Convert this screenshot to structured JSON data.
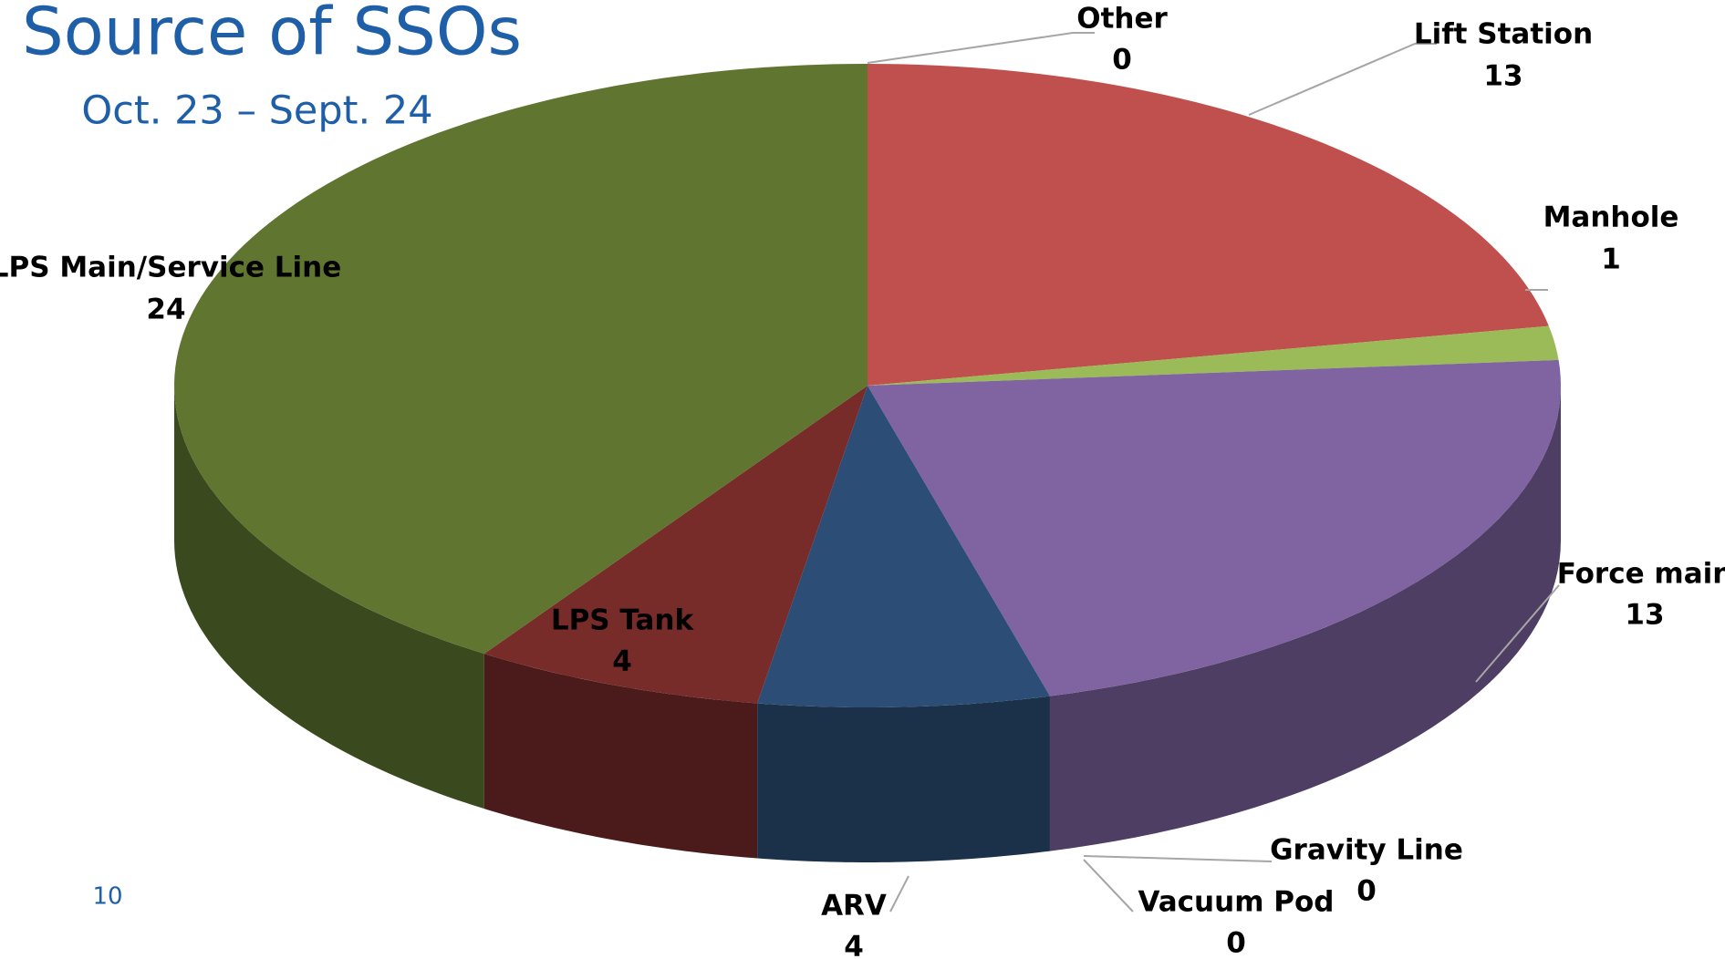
{
  "chart_data": {
    "type": "pie3d",
    "title": "Source of SSOs",
    "subtitle": "Oct. 23 – Sept. 24",
    "page_number": "10",
    "categories": [
      "Other",
      "Lift Station",
      "Manhole",
      "Force main",
      "Gravity Line",
      "Vacuum Pod",
      "ARV",
      "LPS Tank",
      "LPS Main/Service Line"
    ],
    "values": [
      0,
      13,
      1,
      13,
      0,
      0,
      4,
      4,
      24
    ],
    "colors": [
      "#4bacc6",
      "#c0504d",
      "#9bbb59",
      "#8064a2",
      "#4bacc6",
      "#f79646",
      "#2c4d75",
      "#772c2a",
      "#5f7530"
    ]
  }
}
